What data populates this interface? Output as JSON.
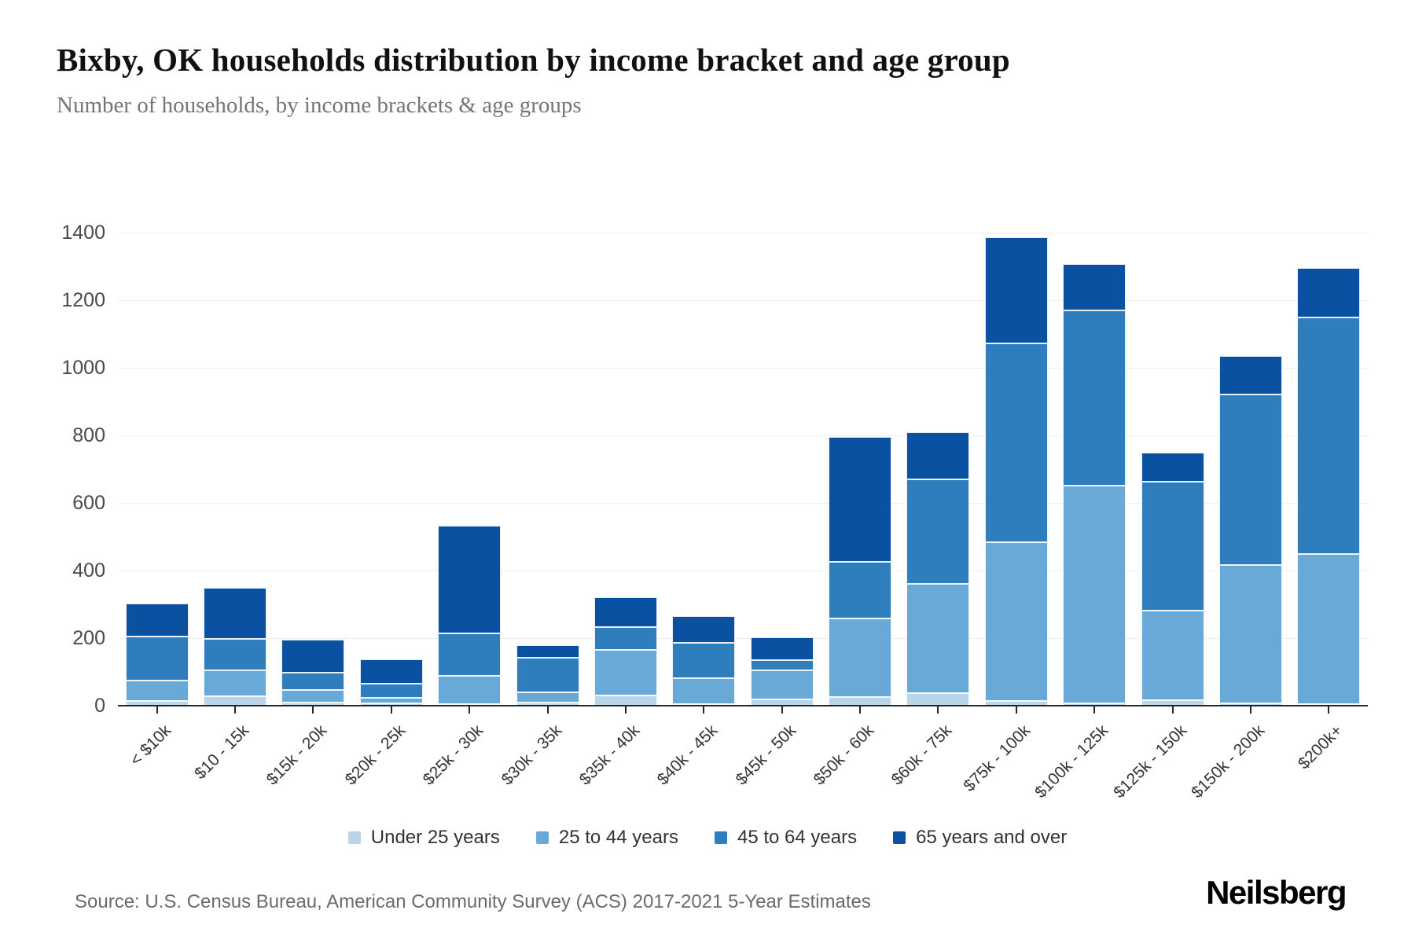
{
  "title": "Bixby, OK households distribution by income bracket and age group",
  "subtitle": "Number of households, by income brackets & age groups",
  "source": "Source: U.S. Census Bureau, American Community Survey (ACS) 2017-2021 5-Year Estimates",
  "brand": "Neilsberg",
  "colors": {
    "under_25": "#b9d5e9",
    "age_25_44": "#68a9d7",
    "age_45_64": "#2e7dbc",
    "age_65_over": "#0b51a1",
    "axis": "#262626",
    "grid": "#efefef",
    "text": "#333333",
    "muted": "#6b6b6b"
  },
  "chart_data": {
    "type": "bar",
    "stacked": true,
    "title": "Bixby, OK households distribution by income bracket and age group",
    "subtitle": "Number of households, by income brackets & age groups",
    "xlabel": "",
    "ylabel": "Number of households",
    "ylim": [
      0,
      1400
    ],
    "yticks": [
      0,
      200,
      400,
      600,
      800,
      1000,
      1200,
      1400
    ],
    "grid": true,
    "legend_position": "bottom",
    "categories": [
      "< $10k",
      "$10 - 15k",
      "$15k - 20k",
      "$20k - 25k",
      "$25k - 30k",
      "$30k - 35k",
      "$35k - 40k",
      "$40k - 45k",
      "$45k - 50k",
      "$50k - 60k",
      "$60k - 75k",
      "$75k - 100k",
      "$100k - 125k",
      "$125k - 150k",
      "$150k - 200k",
      "$200k+"
    ],
    "series": [
      {
        "name": "Under 25 years",
        "color": "#b9d5e9",
        "values": [
          15,
          28,
          10,
          8,
          5,
          10,
          30,
          5,
          18,
          25,
          37,
          14,
          8,
          16,
          8,
          5
        ]
      },
      {
        "name": "25 to 44 years",
        "color": "#68a9d7",
        "values": [
          60,
          76,
          36,
          16,
          84,
          30,
          136,
          77,
          86,
          234,
          324,
          470,
          643,
          265,
          409,
          445
        ]
      },
      {
        "name": "45 to 64 years",
        "color": "#2e7dbc",
        "values": [
          130,
          93,
          51,
          42,
          125,
          103,
          66,
          103,
          31,
          167,
          309,
          589,
          519,
          383,
          503,
          700
        ]
      },
      {
        "name": "65 years and over",
        "color": "#0b51a1",
        "values": [
          98,
          153,
          98,
          71,
          319,
          37,
          89,
          80,
          67,
          369,
          139,
          312,
          136,
          85,
          115,
          145
        ]
      }
    ],
    "totals": [
      303,
      350,
      195,
      137,
      533,
      180,
      321,
      265,
      202,
      795,
      809,
      1385,
      1306,
      749,
      1035,
      1295
    ]
  }
}
